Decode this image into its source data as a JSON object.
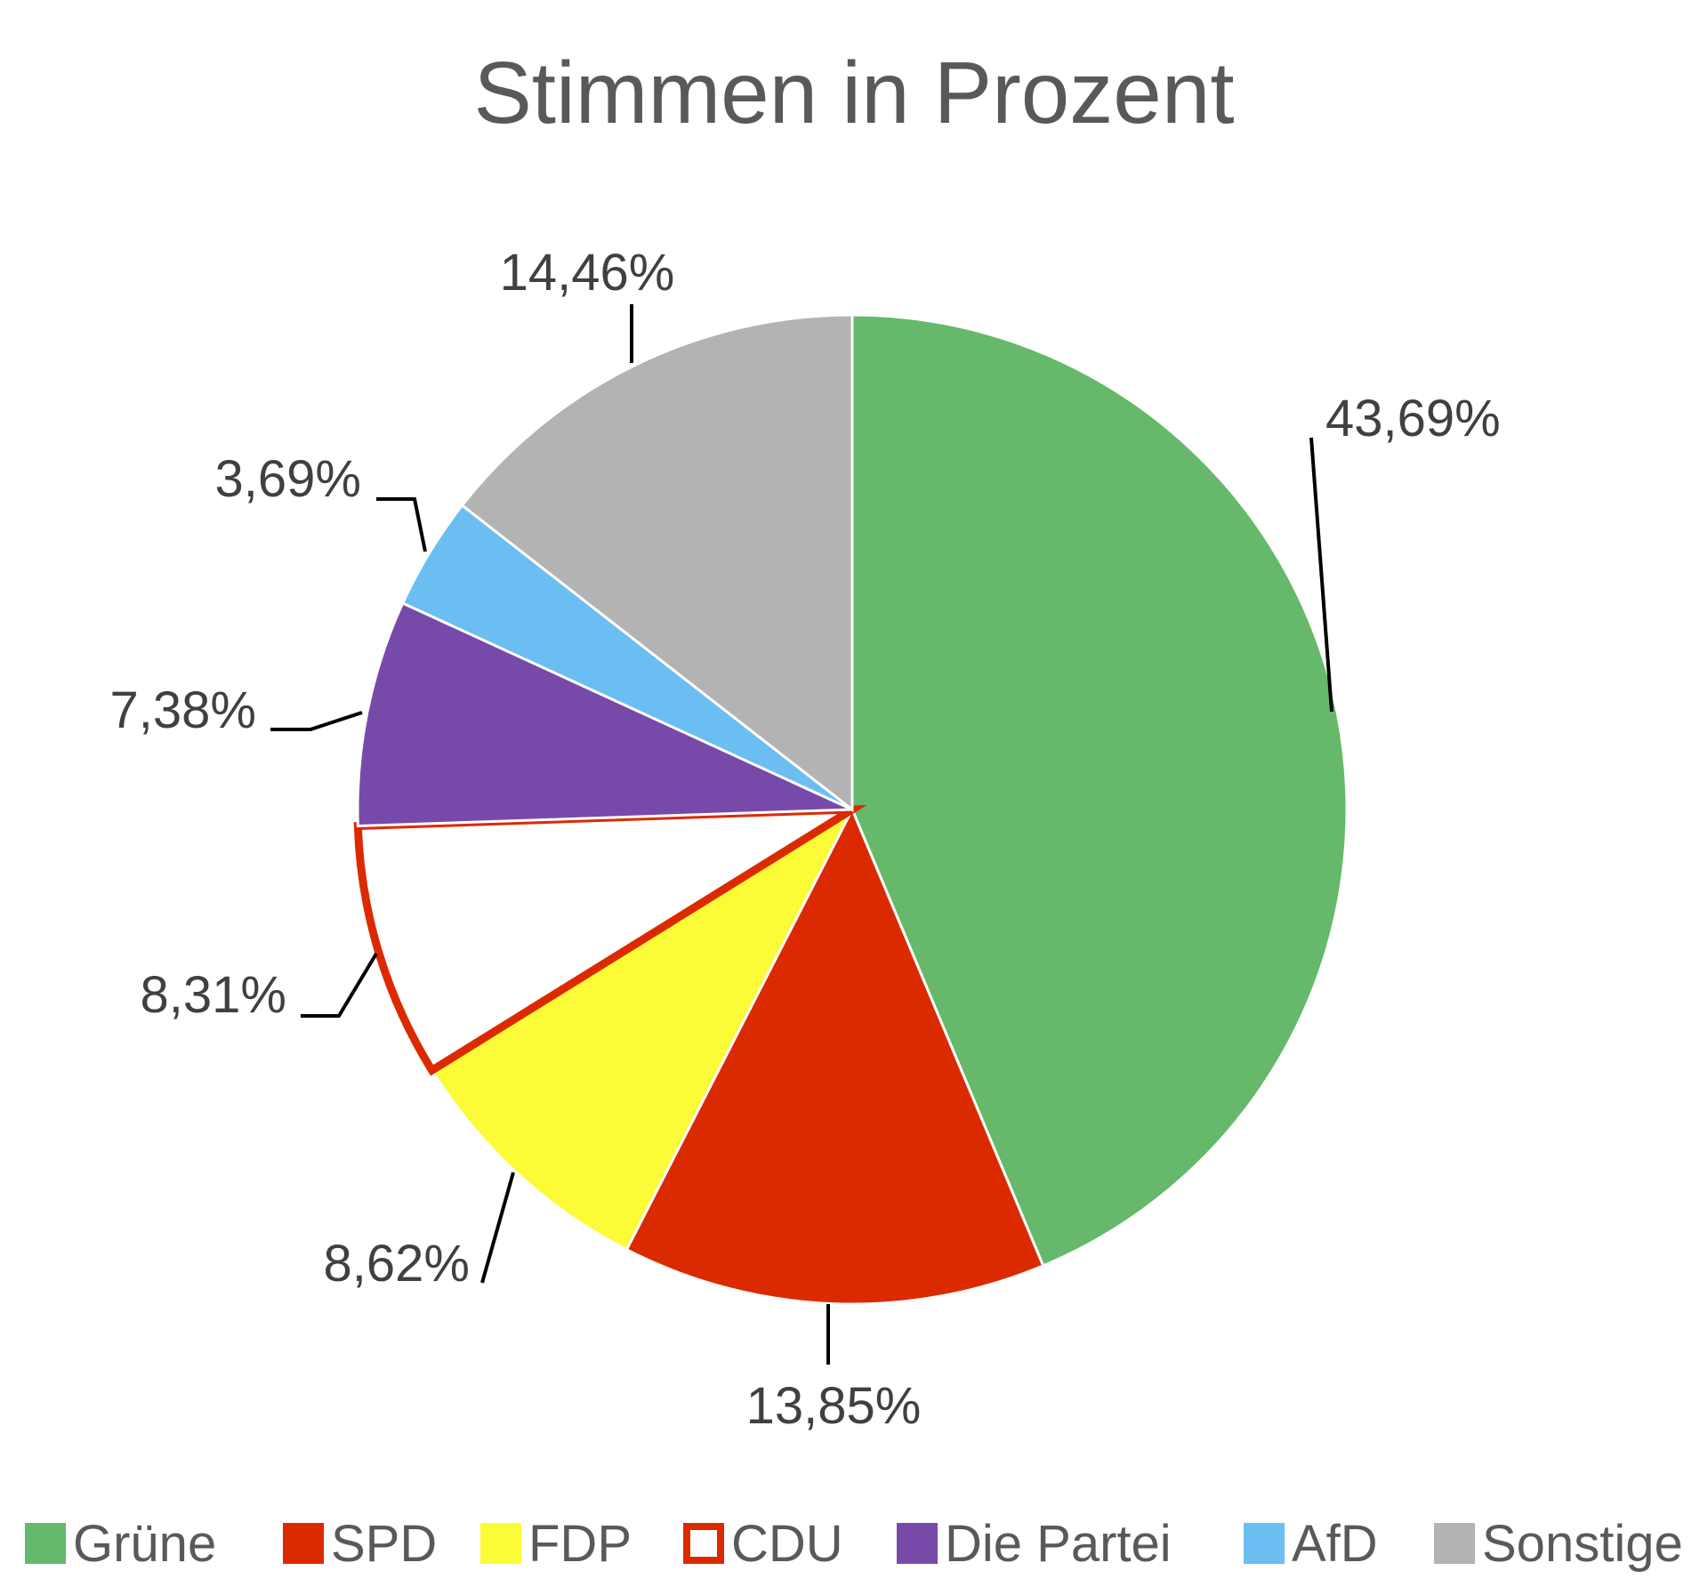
{
  "chart_data": {
    "type": "pie",
    "title": "Stimmen in Prozent",
    "slices": [
      {
        "name": "Grüne",
        "value": 43.69,
        "label": "43,69%",
        "color": "#66b86a",
        "style": "filled"
      },
      {
        "name": "SPD",
        "value": 13.85,
        "label": "13,85%",
        "color": "#dc2a00",
        "style": "filled"
      },
      {
        "name": "FDP",
        "value": 8.62,
        "label": "8,62%",
        "color": "#fbfb38",
        "style": "filled"
      },
      {
        "name": "CDU",
        "value": 8.31,
        "label": "8,31%",
        "color": "#dc2a00",
        "style": "outline"
      },
      {
        "name": "Die Partei",
        "value": 7.38,
        "label": "7,38%",
        "color": "#774aaa",
        "style": "filled"
      },
      {
        "name": "AfD",
        "value": 3.69,
        "label": "3,69%",
        "color": "#6bbef2",
        "style": "filled"
      },
      {
        "name": "Sonstige",
        "value": 14.46,
        "label": "14,46%",
        "color": "#b3b3b3",
        "style": "filled"
      }
    ],
    "legend_position": "bottom",
    "data_labels": "outside with leader lines"
  }
}
